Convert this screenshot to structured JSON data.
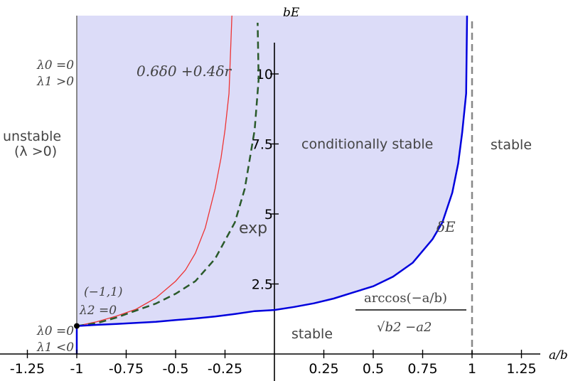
{
  "chart_data": {
    "type": "area",
    "xlabel": "a/b",
    "ylabel": "bE",
    "xlim": [
      -1.35,
      1.5
    ],
    "ylim": [
      -0.6,
      11.8
    ],
    "xticks": [
      -1.25,
      -1,
      -0.75,
      -0.5,
      -0.25,
      0.25,
      0.5,
      0.75,
      1,
      1.25
    ],
    "xtick_labels": [
      "-1.25",
      "-1",
      "-0.75",
      "-0.5",
      "-0.25",
      "0.25",
      "0.5",
      "0.75",
      "1",
      "1.25"
    ],
    "yticks": [
      2.5,
      5,
      7.5,
      10
    ],
    "ytick_labels": [
      "2.5",
      "5",
      "7.5",
      "10"
    ],
    "grid": false,
    "legend": "none",
    "series": [
      {
        "name": "δE",
        "color": "#0000dd",
        "x": [
          -1.0,
          -0.9,
          -0.8,
          -0.7,
          -0.6,
          -0.5,
          -0.4,
          -0.3,
          -0.2,
          -0.1,
          0.0,
          0.1,
          0.2,
          0.3,
          0.4,
          0.5,
          0.6,
          0.7,
          0.8,
          0.85,
          0.9,
          0.93,
          0.95,
          0.97
        ],
        "y": [
          1.0,
          1.04,
          1.07,
          1.11,
          1.15,
          1.21,
          1.27,
          1.34,
          1.43,
          1.53,
          1.57,
          1.68,
          1.81,
          1.98,
          2.2,
          2.42,
          2.76,
          3.26,
          4.1,
          4.7,
          5.76,
          6.8,
          7.9,
          9.3
        ]
      },
      {
        "name": "0.6δ0 +0.4δr",
        "color": "#2a5a2a",
        "x": [
          -1.0,
          -0.9,
          -0.8,
          -0.7,
          -0.6,
          -0.5,
          -0.4,
          -0.3,
          -0.2,
          -0.15,
          -0.1,
          -0.08
        ],
        "y": [
          1.0,
          1.1,
          1.3,
          1.55,
          1.8,
          2.15,
          2.6,
          3.4,
          4.7,
          5.9,
          8.0,
          9.8
        ]
      },
      {
        "name": "exp",
        "color": "#ee3333",
        "x": [
          -1.0,
          -0.9,
          -0.8,
          -0.7,
          -0.6,
          -0.5,
          -0.45,
          -0.4,
          -0.35,
          -0.3,
          -0.27,
          -0.25,
          -0.23
        ],
        "y": [
          1.0,
          1.15,
          1.35,
          1.6,
          2.0,
          2.6,
          3.0,
          3.6,
          4.5,
          5.9,
          7.0,
          8.0,
          9.3
        ]
      }
    ],
    "annotations": {
      "unstable": "unstable",
      "unstable_cond": "(λ >0)",
      "conditionally_stable": "conditionally stable",
      "stable_right": "stable",
      "stable_bottom": "stable",
      "exp_label": "exp",
      "delta_e": "δE",
      "mix_label": "0.6δ0 +0.4δr",
      "lambda0_zero_top": "λ0 =0",
      "lambda1_pos": "λ1 >0",
      "lambda0_zero_bottom": "λ0 =0",
      "lambda1_neg": "λ1 <0",
      "point_coord": "(−1,1)",
      "lambda_sq_zero": "λ2 =0",
      "formula_numerator": "arccos(−a/b)",
      "formula_denominator": "√b2 −a2"
    },
    "colors": {
      "fill": "#dcdcf8",
      "boundary_left": "#888888",
      "boundary_right_dashed": "#888888",
      "delta_e_curve": "#0000dd",
      "mix_curve": "#2a5a2a",
      "exp_curve": "#ee3333"
    }
  }
}
